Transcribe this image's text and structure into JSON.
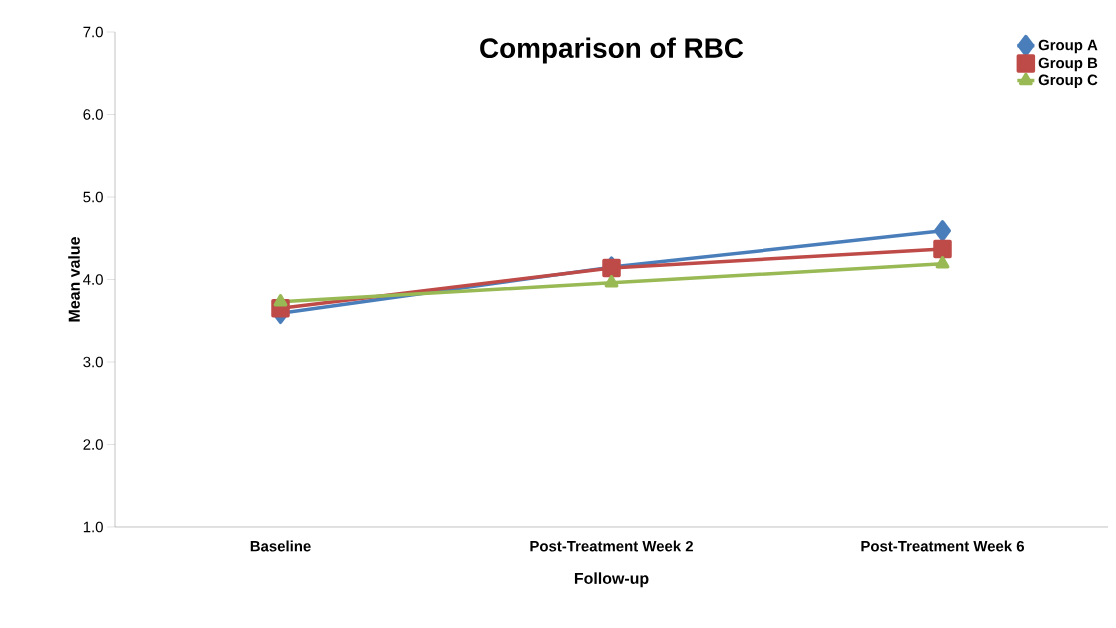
{
  "chart_data": {
    "type": "line",
    "title": "Comparison of RBC",
    "xlabel": "Follow-up",
    "ylabel": "Mean value",
    "categories": [
      "Baseline",
      "Post-Treatment Week 2",
      "Post-Treatment Week 6"
    ],
    "series": [
      {
        "name": "Group A",
        "color": "#4a7ebb",
        "marker": "diamond",
        "values": [
          3.59,
          4.15,
          4.59
        ]
      },
      {
        "name": "Group B",
        "color": "#be4b48",
        "marker": "square",
        "values": [
          3.65,
          4.14,
          4.37
        ]
      },
      {
        "name": "Group C",
        "color": "#98b954",
        "marker": "triangle",
        "values": [
          3.73,
          3.96,
          4.19
        ]
      }
    ],
    "ylim": [
      1,
      7
    ],
    "yticks": [
      {
        "value": 1,
        "label": "1.0"
      },
      {
        "value": 2,
        "label": "2.0"
      },
      {
        "value": 3,
        "label": "3.0"
      },
      {
        "value": 4,
        "label": "4.0"
      },
      {
        "value": 5,
        "label": "5.0"
      },
      {
        "value": 6,
        "label": "6.0"
      },
      {
        "value": 7,
        "label": "7.0"
      }
    ],
    "grid": false,
    "legend": "top right",
    "line_style": "solid"
  }
}
